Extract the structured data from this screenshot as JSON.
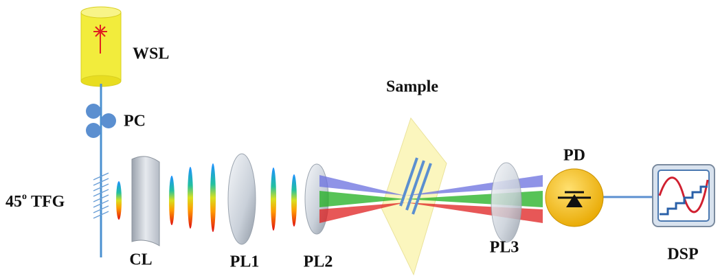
{
  "nodes": [
    {
      "label": "WSL"
    },
    {
      "label": "PC"
    },
    {
      "label": "45",
      "superscript": "o",
      "suffix": "TFG"
    },
    {
      "label": "CL"
    },
    {
      "label": "PL1"
    },
    {
      "label": "PL2"
    },
    {
      "label": "Sample"
    },
    {
      "label": "PL3"
    },
    {
      "label": "PD"
    },
    {
      "label": "DSP"
    }
  ]
}
